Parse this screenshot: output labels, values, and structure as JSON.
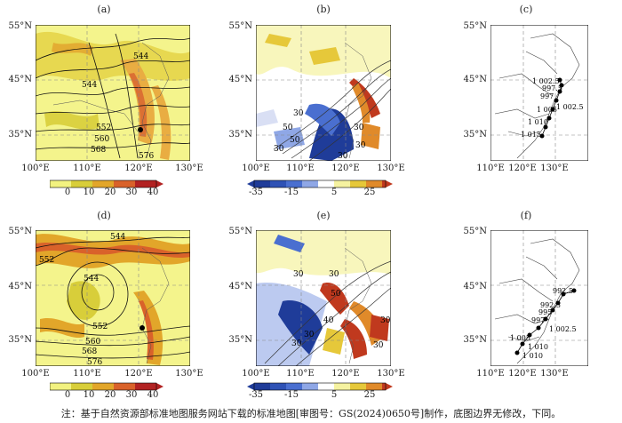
{
  "panels": {
    "a": {
      "label": "(a)"
    },
    "b": {
      "label": "(b)"
    },
    "c": {
      "label": "(c)"
    },
    "d": {
      "label": "(d)"
    },
    "e": {
      "label": "(e)"
    },
    "f": {
      "label": "(f)"
    }
  },
  "lat_labels": [
    "55°N",
    "45°N",
    "35°N"
  ],
  "lon_labels_map": [
    "100°E",
    "110°E",
    "120°E",
    "130°E"
  ],
  "lon_labels_track": [
    "110°E",
    "120°E",
    "130°E"
  ],
  "contours": {
    "a": [
      "544",
      "544",
      "552",
      "560",
      "568",
      "576"
    ],
    "b": [
      "30",
      "50",
      "50",
      "30",
      "30",
      "30",
      "30"
    ],
    "d": [
      "544",
      "552",
      "544",
      "552",
      "560",
      "568",
      "576"
    ],
    "e": [
      "30",
      "30",
      "50",
      "40",
      "30",
      "30",
      "30",
      "30"
    ]
  },
  "tracks": {
    "c": [
      "1 002.5",
      "997.5",
      "997",
      "1 005",
      "1 002.5",
      "1 010",
      "1 015"
    ],
    "f": [
      "992.5",
      "992.5",
      "995",
      "997",
      "1 002.5",
      "1 005",
      "1 010",
      "1 010"
    ]
  },
  "colorbar_pos": {
    "ticks": [
      "0",
      "10",
      "20",
      "30",
      "40"
    ],
    "colors": [
      "#f2f280",
      "#d8ce3a",
      "#e2a62a",
      "#d9622a",
      "#b22222"
    ]
  },
  "colorbar_div": {
    "ticks": [
      "-35",
      "-15",
      "5",
      "25"
    ],
    "colors": [
      "#1f3c99",
      "#4a6fd0",
      "#8fa7e6",
      "#d9dff4",
      "#f5f2a0",
      "#e6c83a",
      "#e08a2a",
      "#c0391e"
    ]
  },
  "note": "注：基于自然资源部标准地图服务网站下载的标准地图[审图号：GS(2024)0650号]制作，底图边界无修改，下同。"
}
